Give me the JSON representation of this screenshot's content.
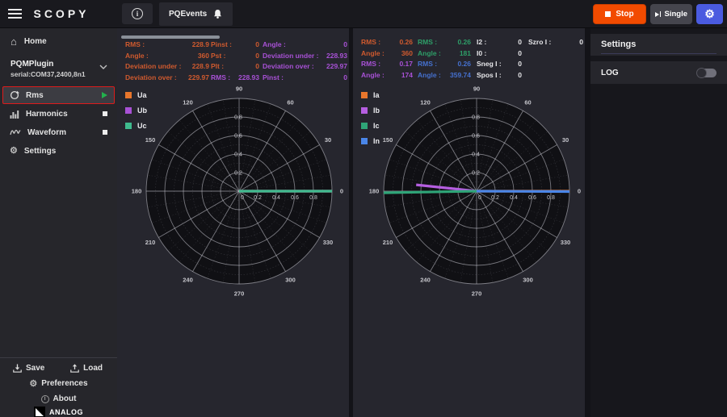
{
  "colors": {
    "orange": "#cf5a2e",
    "purple": "#a851d6",
    "green": "#2e9e68",
    "blue": "#4570ce",
    "white_text": "#e6e6e9",
    "accent_red_selection": "#de1b1b",
    "stop_orange": "#f24b00",
    "gear_blue": "#4a5be0",
    "play_green": "#23b14d",
    "panel_bg": "#26262e",
    "plot_fill": "#101014"
  },
  "topbar": {
    "brand": "SCOPY",
    "events_tab": "PQEvents",
    "stop": "Stop",
    "single": "Single"
  },
  "sidebar": {
    "home": "Home",
    "plugin_name": "PQMPlugin",
    "plugin_serial": "serial:COM37,2400,8n1",
    "tools": [
      {
        "label": "Rms"
      },
      {
        "label": "Harmonics"
      },
      {
        "label": "Waveform"
      },
      {
        "label": "Settings"
      }
    ],
    "save": "Save",
    "load": "Load",
    "preferences": "Preferences",
    "about": "About",
    "brand": "ANALOG"
  },
  "panel1": {
    "stats": {
      "col1": [
        {
          "l": "RMS :",
          "v": "228.9",
          "c": "#cf5a2e"
        },
        {
          "l": "Angle :",
          "v": "360",
          "c": "#cf5a2e"
        },
        {
          "l": "Deviation under :",
          "v": "228.9",
          "c": "#cf5a2e"
        },
        {
          "l": "Deviation over :",
          "v": "229.97",
          "c": "#cf5a2e"
        }
      ],
      "col2": [
        {
          "l": "Pinst :",
          "v": "0",
          "c": "#cf5a2e"
        },
        {
          "l": "Pst :",
          "v": "0",
          "c": "#cf5a2e"
        },
        {
          "l": "Plt :",
          "v": "0",
          "c": "#cf5a2e"
        },
        {
          "l": "RMS :",
          "v": "228.93",
          "c": "#a851d6"
        }
      ],
      "col3": [
        {
          "l": "Angle :",
          "v": "0",
          "c": "#a851d6"
        },
        {
          "l": "Deviation under :",
          "v": "228.93",
          "c": "#a851d6"
        },
        {
          "l": "Deviation over :",
          "v": "229.97",
          "c": "#a851d6"
        },
        {
          "l": "Pinst :",
          "v": "0",
          "c": "#a851d6"
        }
      ]
    }
  },
  "panel2": {
    "stats": {
      "col1": [
        {
          "l": "RMS :",
          "v": "0.26",
          "c": "#cf5a2e"
        },
        {
          "l": "Angle :",
          "v": "360",
          "c": "#cf5a2e"
        },
        {
          "l": "RMS :",
          "v": "0.17",
          "c": "#a851d6"
        },
        {
          "l": "Angle :",
          "v": "174",
          "c": "#a851d6"
        }
      ],
      "col2": [
        {
          "l": "RMS :",
          "v": "0.26",
          "c": "#2e9e68"
        },
        {
          "l": "Angle :",
          "v": "181",
          "c": "#2e9e68"
        },
        {
          "l": "RMS :",
          "v": "0.26",
          "c": "#4570ce"
        },
        {
          "l": "Angle :",
          "v": "359.74",
          "c": "#4570ce"
        }
      ],
      "col3": [
        {
          "l": "I2 :",
          "v": "0",
          "c": "#e6e6e9"
        },
        {
          "l": "I0 :",
          "v": "0",
          "c": "#e6e6e9"
        },
        {
          "l": "Sneg I :",
          "v": "0",
          "c": "#e6e6e9"
        },
        {
          "l": "Spos I :",
          "v": "0",
          "c": "#e6e6e9"
        }
      ],
      "col4": [
        {
          "l": "Szro I :",
          "v": "0",
          "c": "#e6e6e9"
        }
      ]
    }
  },
  "settings_panel": {
    "title": "Settings",
    "log_label": "LOG",
    "log_enabled": false
  },
  "chart_data": [
    {
      "type": "polar",
      "name": "voltage-phasor-plot",
      "rmax": 1,
      "radial_ticks": [
        0.2,
        0.4,
        0.6,
        0.8
      ],
      "angular_ticks": [
        0,
        30,
        60,
        90,
        120,
        150,
        180,
        210,
        240,
        270,
        300,
        330
      ],
      "grid": true,
      "legend_position": "top-left",
      "series": [
        {
          "name": "Ua",
          "color": "#e8762c",
          "angle_deg": 360,
          "radius_norm": 1.0
        },
        {
          "name": "Ub",
          "color": "#a851d6",
          "angle_deg": 0,
          "radius_norm": 1.0
        },
        {
          "name": "Uc",
          "color": "#3fba8e",
          "angle_deg": 0,
          "radius_norm": 1.0
        }
      ]
    },
    {
      "type": "polar",
      "name": "current-phasor-plot",
      "rmax": 1,
      "radial_ticks": [
        0.2,
        0.4,
        0.6,
        0.8
      ],
      "angular_ticks": [
        0,
        30,
        60,
        90,
        120,
        150,
        180,
        210,
        240,
        270,
        300,
        330
      ],
      "grid": true,
      "legend_position": "top-left",
      "series": [
        {
          "name": "Ia",
          "color": "#e8762c",
          "angle_deg": 360,
          "radius_norm": 1.0
        },
        {
          "name": "Ib",
          "color": "#b55ee0",
          "angle_deg": 174,
          "radius_norm": 0.654
        },
        {
          "name": "Ic",
          "color": "#2fa578",
          "angle_deg": 181,
          "radius_norm": 1.0
        },
        {
          "name": "In",
          "color": "#4a86e8",
          "angle_deg": 359.74,
          "radius_norm": 1.0
        }
      ]
    }
  ]
}
